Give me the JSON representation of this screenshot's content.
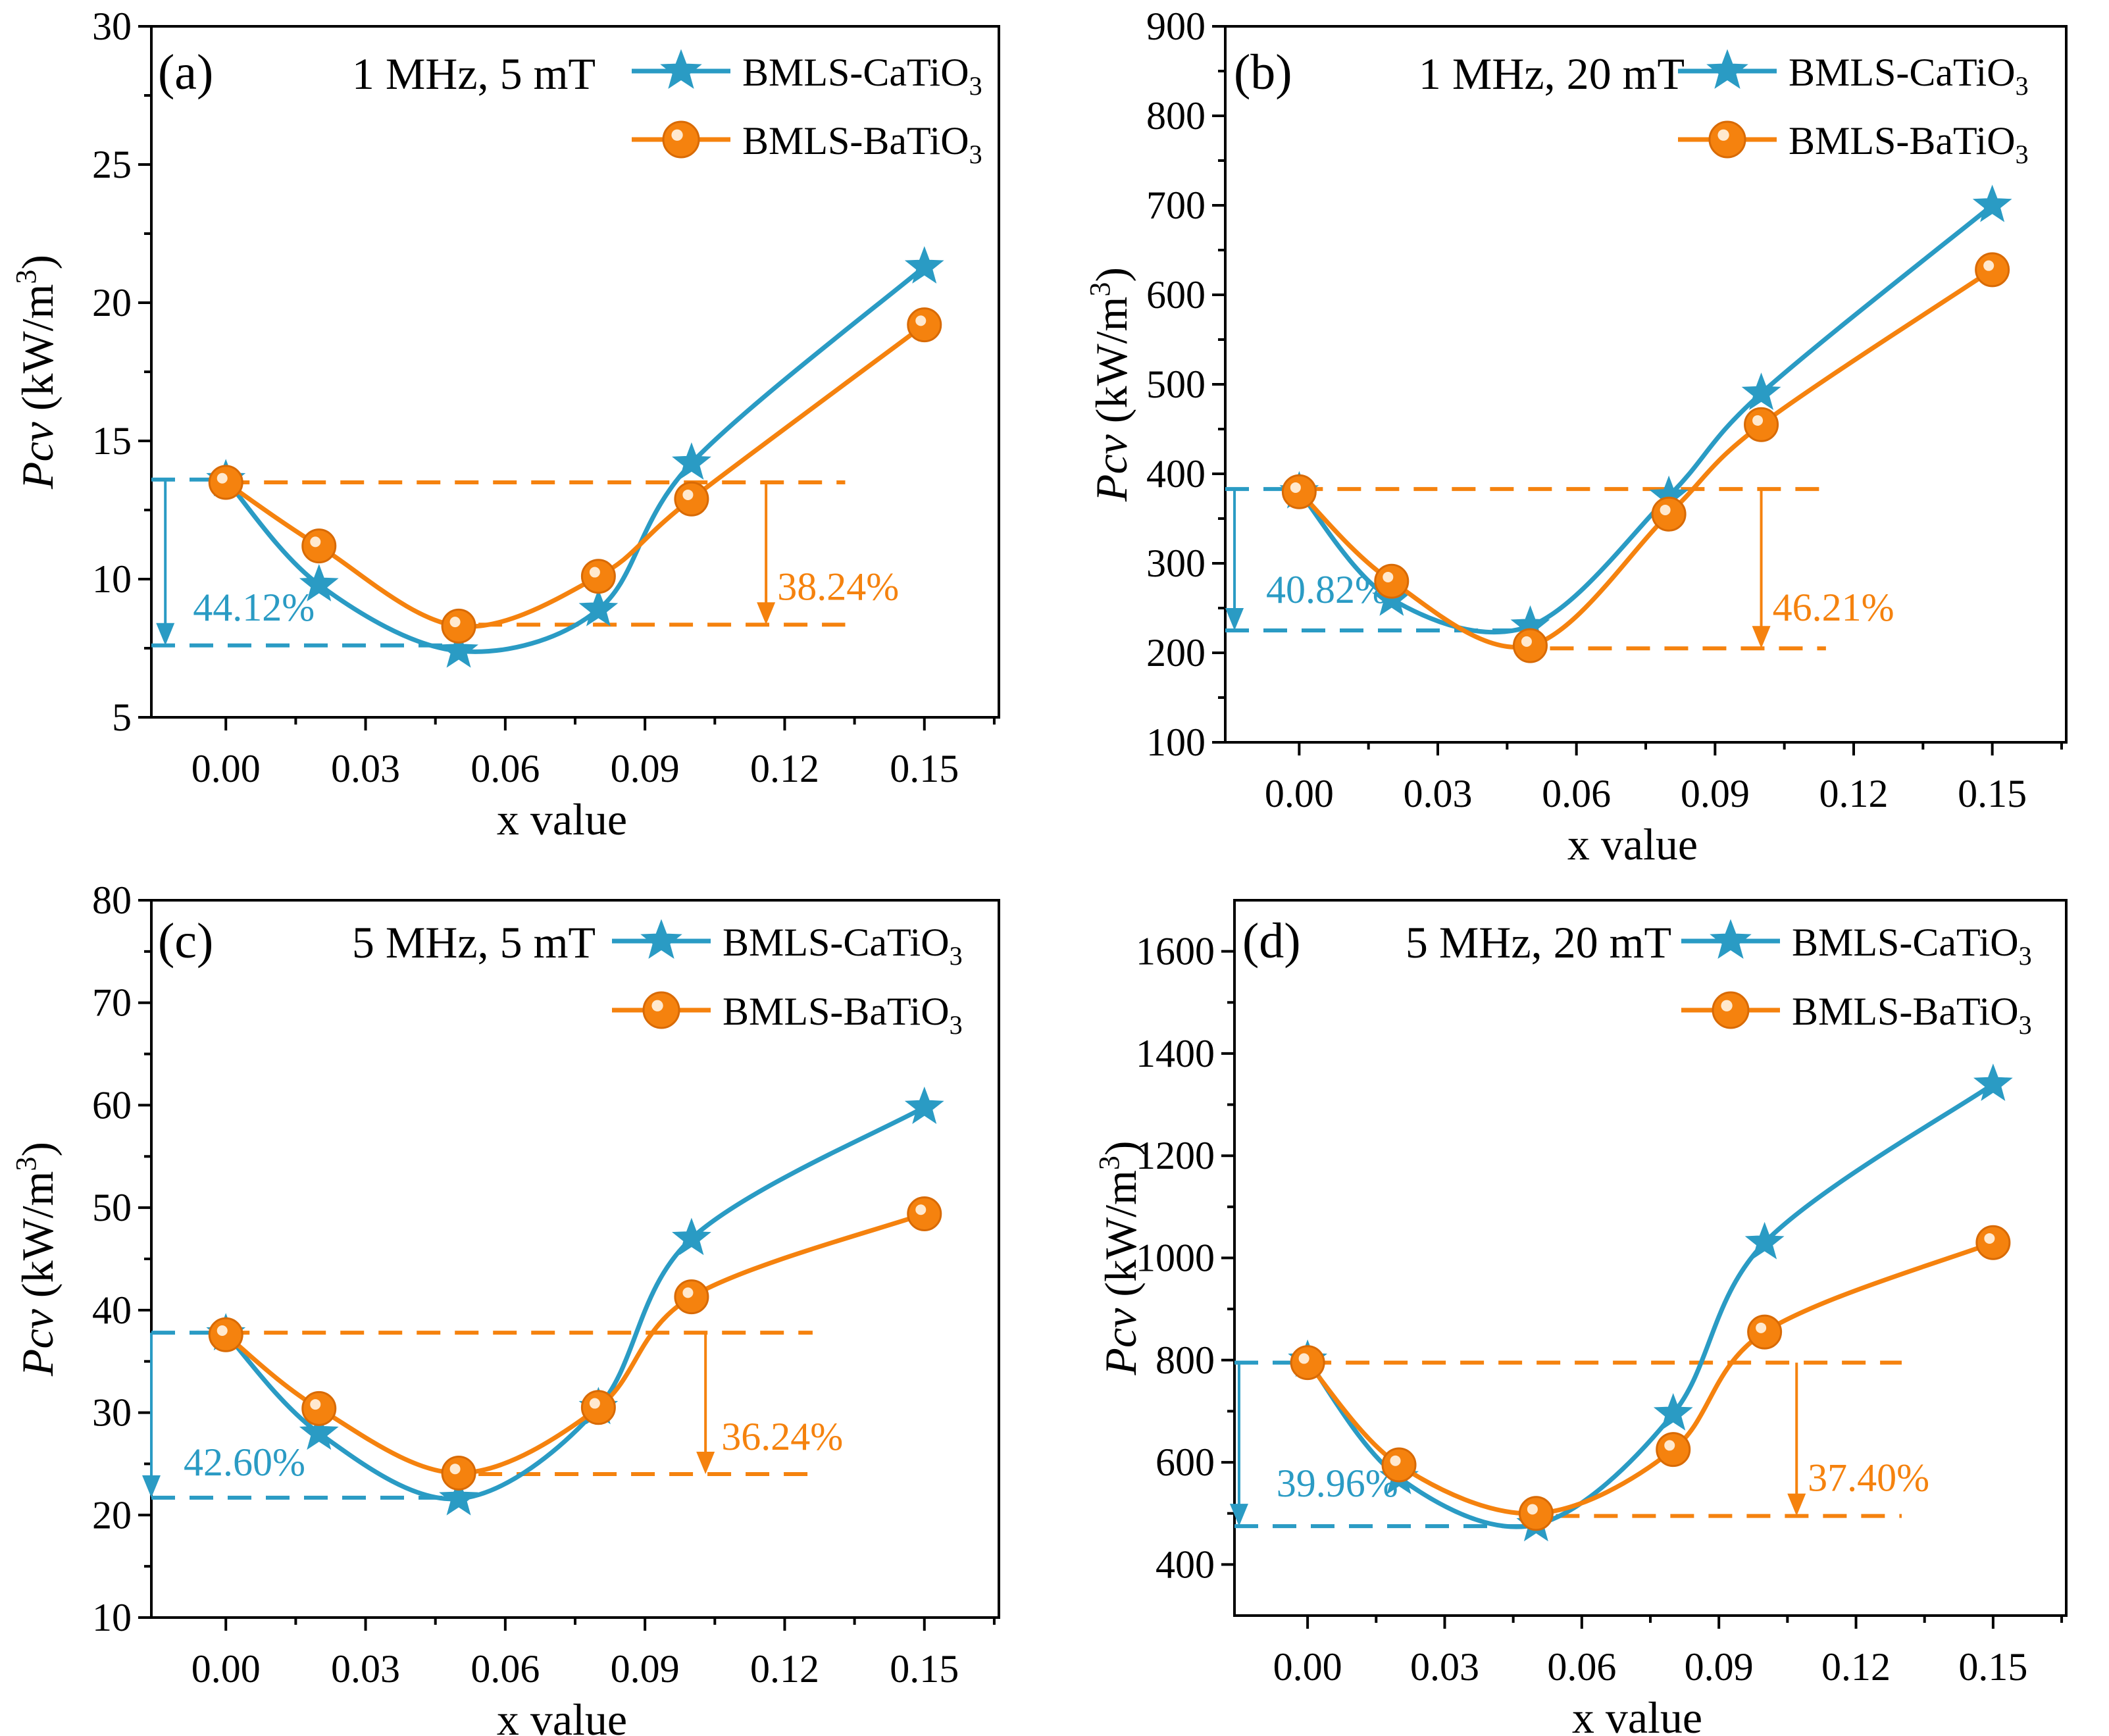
{
  "colors": {
    "blue": "#2a9bc4",
    "orange": "#f5820e",
    "axis": "#000000"
  },
  "legend_labels": [
    "BMLS-CaTiO",
    "BMLS-BaTiO"
  ],
  "legend_subscript": "3",
  "chart_data": [
    {
      "type": "line",
      "panel_label": "(a)",
      "condition": "1 MHz, 5 mT",
      "xlabel": "x value",
      "ylabel_italic": "Pcv",
      "ylabel_unit": " (kW/m",
      "ylabel_sup": "3",
      "ylabel_close": ")",
      "xlim": [
        -0.016,
        0.166
      ],
      "ylim": [
        5,
        30
      ],
      "xticks": [
        0.0,
        0.03,
        0.06,
        0.09,
        0.12,
        0.15
      ],
      "xtick_labels": [
        "0.00",
        "0.03",
        "0.06",
        "0.09",
        "0.12",
        "0.15"
      ],
      "yticks": [
        5,
        10,
        15,
        20,
        25,
        30
      ],
      "ytick_labels": [
        "5",
        "10",
        "15",
        "20",
        "25",
        "30"
      ],
      "x": [
        0.0,
        0.02,
        0.05,
        0.08,
        0.1,
        0.15
      ],
      "series": [
        {
          "name": "BMLS-CaTiO3",
          "values": [
            13.6,
            9.8,
            7.4,
            8.9,
            14.2,
            21.3
          ]
        },
        {
          "name": "BMLS-BaTiO3",
          "values": [
            13.5,
            11.2,
            8.3,
            10.1,
            12.9,
            19.2
          ]
        }
      ],
      "annotations": [
        {
          "series": "BMLS-CaTiO3",
          "text": "44.12%",
          "from": 13.6,
          "to": 7.6
        },
        {
          "series": "BMLS-BaTiO3",
          "text": "38.24%",
          "from": 13.5,
          "to": 8.35
        }
      ]
    },
    {
      "type": "line",
      "panel_label": "(b)",
      "condition": "1 MHz, 20 mT",
      "xlabel": "x value",
      "ylabel_italic": "Pcv",
      "ylabel_unit": " (kW/m",
      "ylabel_sup": "3",
      "ylabel_close": ")",
      "xlim": [
        -0.016,
        0.166
      ],
      "ylim": [
        100,
        900
      ],
      "xticks": [
        0.0,
        0.03,
        0.06,
        0.09,
        0.12,
        0.15
      ],
      "xtick_labels": [
        "0.00",
        "0.03",
        "0.06",
        "0.09",
        "0.12",
        "0.15"
      ],
      "yticks": [
        100,
        200,
        300,
        400,
        500,
        600,
        700,
        800,
        900
      ],
      "ytick_labels": [
        "100",
        "200",
        "300",
        "400",
        "500",
        "600",
        "700",
        "800",
        "900"
      ],
      "x": [
        0.0,
        0.02,
        0.05,
        0.08,
        0.1,
        0.15
      ],
      "series": [
        {
          "name": "BMLS-CaTiO3",
          "values": [
            380,
            260,
            230,
            375,
            490,
            700
          ]
        },
        {
          "name": "BMLS-BaTiO3",
          "values": [
            380,
            280,
            208,
            355,
            455,
            628
          ]
        }
      ],
      "annotations": [
        {
          "series": "BMLS-CaTiO3",
          "text": "40.82%",
          "from": 383,
          "to": 225
        },
        {
          "series": "BMLS-BaTiO3",
          "text": "46.21%",
          "from": 383,
          "to": 205
        }
      ]
    },
    {
      "type": "line",
      "panel_label": "(c)",
      "condition": "5 MHz, 5 mT",
      "xlabel": "x value",
      "ylabel_italic": "Pcv",
      "ylabel_unit": " (kW/m",
      "ylabel_sup": "3",
      "ylabel_close": ")",
      "xlim": [
        -0.016,
        0.166
      ],
      "ylim": [
        10,
        80
      ],
      "xticks": [
        0.0,
        0.03,
        0.06,
        0.09,
        0.12,
        0.15
      ],
      "xtick_labels": [
        "0.00",
        "0.03",
        "0.06",
        "0.09",
        "0.12",
        "0.15"
      ],
      "yticks": [
        10,
        20,
        30,
        40,
        50,
        60,
        70,
        80
      ],
      "ytick_labels": [
        "10",
        "20",
        "30",
        "40",
        "50",
        "60",
        "70",
        "80"
      ],
      "x": [
        0.0,
        0.02,
        0.05,
        0.08,
        0.1,
        0.15
      ],
      "series": [
        {
          "name": "BMLS-CaTiO3",
          "values": [
            37.7,
            28.0,
            21.6,
            30.5,
            47.0,
            59.8
          ]
        },
        {
          "name": "BMLS-BaTiO3",
          "values": [
            37.6,
            30.4,
            24.1,
            30.5,
            41.3,
            49.4
          ]
        }
      ],
      "annotations": [
        {
          "series": "BMLS-CaTiO3",
          "text": "42.60%",
          "from": 37.8,
          "to": 21.7
        },
        {
          "series": "BMLS-BaTiO3",
          "text": "36.24%",
          "from": 37.8,
          "to": 24.0
        }
      ]
    },
    {
      "type": "line",
      "panel_label": "(d)",
      "condition": "5 MHz, 20 mT",
      "xlabel": "x value",
      "ylabel_italic": "Pcv",
      "ylabel_unit": " (kW/m",
      "ylabel_sup": "3",
      "ylabel_close": ")",
      "xlim": [
        -0.016,
        0.166
      ],
      "ylim": [
        300,
        1700
      ],
      "xticks": [
        0.0,
        0.03,
        0.06,
        0.09,
        0.12,
        0.15
      ],
      "xtick_labels": [
        "0.00",
        "0.03",
        "0.06",
        "0.09",
        "0.12",
        "0.15"
      ],
      "yticks": [
        400,
        600,
        800,
        1000,
        1200,
        1400,
        1600
      ],
      "ytick_labels": [
        "400",
        "600",
        "800",
        "1000",
        "1200",
        "1400",
        "1600"
      ],
      "x": [
        0.0,
        0.02,
        0.05,
        0.08,
        0.1,
        0.15
      ],
      "series": [
        {
          "name": "BMLS-CaTiO3",
          "values": [
            800,
            570,
            478,
            695,
            1030,
            1340
          ]
        },
        {
          "name": "BMLS-BaTiO3",
          "values": [
            795,
            595,
            500,
            625,
            855,
            1030
          ]
        }
      ],
      "annotations": [
        {
          "series": "BMLS-CaTiO3",
          "text": "39.96%",
          "from": 795,
          "to": 475
        },
        {
          "series": "BMLS-BaTiO3",
          "text": "37.40%",
          "from": 795,
          "to": 495
        }
      ]
    }
  ]
}
